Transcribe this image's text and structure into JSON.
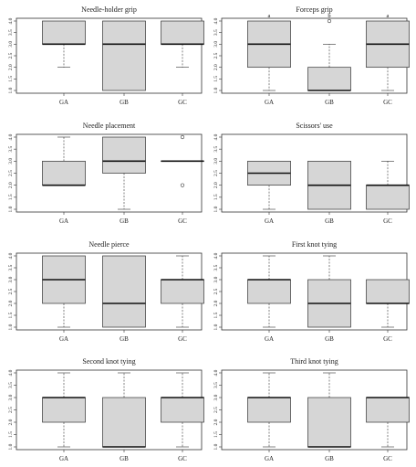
{
  "chart_data": [
    {
      "type": "box",
      "title": "Needle-holder grip",
      "categories": [
        "GA",
        "GB",
        "GC"
      ],
      "yticks": [
        "1.0",
        "1.5",
        "2.0",
        "2.5",
        "3.0",
        "3.5",
        "4.0"
      ],
      "ylim": [
        1,
        4
      ],
      "boxes": [
        {
          "min": 2,
          "q1": 3,
          "median": 3,
          "q3": 4,
          "max": 4,
          "outliers": []
        },
        {
          "min": 1,
          "q1": 1,
          "median": 3,
          "q3": 4,
          "max": 4,
          "outliers": []
        },
        {
          "min": 2,
          "q1": 3,
          "median": 3,
          "q3": 4,
          "max": 4,
          "outliers": []
        }
      ],
      "annotations": []
    },
    {
      "type": "box",
      "title": "Forceps grip",
      "categories": [
        "GA",
        "GB",
        "GC"
      ],
      "yticks": [
        "1.0",
        "1.5",
        "2.0",
        "2.5",
        "3.0",
        "3.5",
        "4.0"
      ],
      "ylim": [
        1,
        4
      ],
      "boxes": [
        {
          "min": 1,
          "q1": 2,
          "median": 3,
          "q3": 4,
          "max": 4,
          "outliers": []
        },
        {
          "min": 1,
          "q1": 1,
          "median": 1,
          "q3": 2,
          "max": 3,
          "outliers": [
            4
          ]
        },
        {
          "min": 1,
          "q1": 2,
          "median": 3,
          "q3": 4,
          "max": 4,
          "outliers": []
        }
      ],
      "annotations": [
        "a",
        "b",
        "a"
      ]
    },
    {
      "type": "box",
      "title": "Needle placement",
      "categories": [
        "GA",
        "GB",
        "GC"
      ],
      "yticks": [
        "1.0",
        "1.5",
        "2.0",
        "2.5",
        "3.0",
        "3.5",
        "4.0"
      ],
      "ylim": [
        1,
        4
      ],
      "boxes": [
        {
          "min": 2,
          "q1": 2,
          "median": 2,
          "q3": 3,
          "max": 4,
          "outliers": []
        },
        {
          "min": 1,
          "q1": 2.5,
          "median": 3,
          "q3": 4,
          "max": 4,
          "outliers": []
        },
        {
          "min": 3,
          "q1": 3,
          "median": 3,
          "q3": 3,
          "max": 3,
          "outliers": [
            2,
            4
          ]
        }
      ],
      "annotations": []
    },
    {
      "type": "box",
      "title": "Scissors' use",
      "categories": [
        "GA",
        "GB",
        "GC"
      ],
      "yticks": [
        "1.0",
        "1.5",
        "2.0",
        "2.5",
        "3.0",
        "3.5",
        "4.0"
      ],
      "ylim": [
        1,
        4
      ],
      "boxes": [
        {
          "min": 1,
          "q1": 2,
          "median": 2.5,
          "q3": 3,
          "max": 3,
          "outliers": []
        },
        {
          "min": 1,
          "q1": 1,
          "median": 2,
          "q3": 3,
          "max": 3,
          "outliers": []
        },
        {
          "min": 1,
          "q1": 1,
          "median": 2,
          "q3": 2,
          "max": 3,
          "outliers": []
        }
      ],
      "annotations": []
    },
    {
      "type": "box",
      "title": "Needle pierce",
      "categories": [
        "GA",
        "GB",
        "GC"
      ],
      "yticks": [
        "1.0",
        "1.5",
        "2.0",
        "2.5",
        "3.0",
        "3.5",
        "4.0"
      ],
      "ylim": [
        1,
        4
      ],
      "boxes": [
        {
          "min": 1,
          "q1": 2,
          "median": 3,
          "q3": 4,
          "max": 4,
          "outliers": []
        },
        {
          "min": 1,
          "q1": 1,
          "median": 2,
          "q3": 4,
          "max": 4,
          "outliers": []
        },
        {
          "min": 1,
          "q1": 2,
          "median": 3,
          "q3": 3,
          "max": 4,
          "outliers": []
        }
      ],
      "annotations": []
    },
    {
      "type": "box",
      "title": "First knot tying",
      "categories": [
        "GA",
        "GB",
        "GC"
      ],
      "yticks": [
        "1.0",
        "1.5",
        "2.0",
        "2.5",
        "3.0",
        "3.5",
        "4.0"
      ],
      "ylim": [
        1,
        4
      ],
      "boxes": [
        {
          "min": 1,
          "q1": 2,
          "median": 3,
          "q3": 3,
          "max": 4,
          "outliers": []
        },
        {
          "min": 1,
          "q1": 1,
          "median": 2,
          "q3": 3,
          "max": 4,
          "outliers": []
        },
        {
          "min": 1,
          "q1": 2,
          "median": 2,
          "q3": 3,
          "max": 3,
          "outliers": []
        }
      ],
      "annotations": []
    },
    {
      "type": "box",
      "title": "Second knot tying",
      "categories": [
        "GA",
        "GB",
        "GC"
      ],
      "yticks": [
        "1.0",
        "1.5",
        "2.0",
        "2.5",
        "3.0",
        "3.5",
        "4.0"
      ],
      "ylim": [
        1,
        4
      ],
      "boxes": [
        {
          "min": 1,
          "q1": 2,
          "median": 3,
          "q3": 3,
          "max": 4,
          "outliers": []
        },
        {
          "min": 1,
          "q1": 1,
          "median": 1,
          "q3": 3,
          "max": 4,
          "outliers": []
        },
        {
          "min": 1,
          "q1": 2,
          "median": 3,
          "q3": 3,
          "max": 4,
          "outliers": []
        }
      ],
      "annotations": []
    },
    {
      "type": "box",
      "title": "Third knot tying",
      "categories": [
        "GA",
        "GB",
        "GC"
      ],
      "yticks": [
        "1.0",
        "1.5",
        "2.0",
        "2.5",
        "3.0",
        "3.5",
        "4.0"
      ],
      "ylim": [
        1,
        4
      ],
      "boxes": [
        {
          "min": 1,
          "q1": 2,
          "median": 3,
          "q3": 3,
          "max": 4,
          "outliers": []
        },
        {
          "min": 1,
          "q1": 1,
          "median": 1,
          "q3": 3,
          "max": 4,
          "outliers": []
        },
        {
          "min": 1,
          "q1": 2,
          "median": 3,
          "q3": 3,
          "max": 3,
          "outliers": []
        }
      ],
      "annotations": []
    }
  ]
}
